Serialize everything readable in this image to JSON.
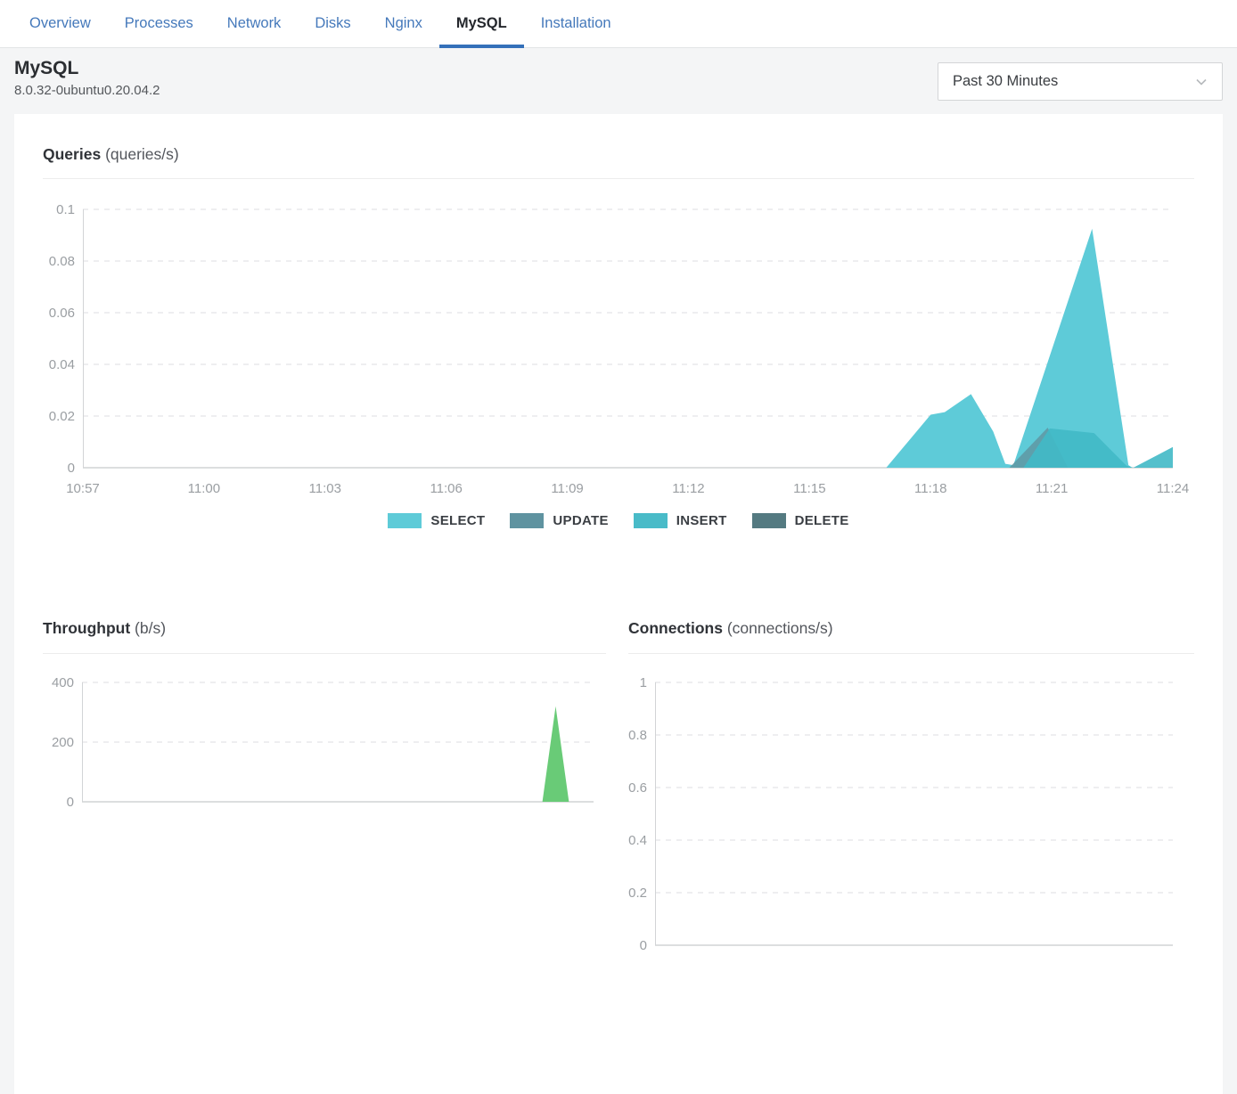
{
  "tabs": {
    "items": [
      {
        "label": "Overview",
        "active": false
      },
      {
        "label": "Processes",
        "active": false
      },
      {
        "label": "Network",
        "active": false
      },
      {
        "label": "Disks",
        "active": false
      },
      {
        "label": "Nginx",
        "active": false
      },
      {
        "label": "MySQL",
        "active": true
      },
      {
        "label": "Installation",
        "active": false
      }
    ]
  },
  "header": {
    "title": "MySQL",
    "version": "8.0.32-0ubuntu0.20.04.2",
    "time_range_value": "Past 30 Minutes"
  },
  "colors": {
    "tab_blue": "#4579bb",
    "active_tab_underline": "#3470b9",
    "select": "#5ecbd8",
    "update": "#5f93a0",
    "insert": "#49bbc8",
    "delete": "#547a81",
    "throughput_green": "#69cb77",
    "page_background": "#f4f5f6",
    "card_background": "#ffffff"
  },
  "chart_data": [
    {
      "id": "queries",
      "type": "area",
      "title": "Queries",
      "unit": "(queries/s)",
      "ylim": [
        0,
        0.1
      ],
      "yticks": [
        0,
        0.02,
        0.04,
        0.06,
        0.08,
        0.1
      ],
      "ytick_labels": [
        "0",
        "0.02",
        "0.04",
        "0.06",
        "0.08",
        "0.1"
      ],
      "x_range_minutes": [
        0,
        27
      ],
      "x_tick_labels": [
        "10:57",
        "11:00",
        "11:03",
        "11:06",
        "11:09",
        "11:12",
        "11:15",
        "11:18",
        "11:21",
        "11:24"
      ],
      "x_tick_pos": [
        0,
        3,
        6,
        9,
        12,
        15,
        18,
        21,
        24,
        27
      ],
      "grid": "dashed",
      "legend_position": "bottom-center",
      "legend": [
        {
          "label": "SELECT",
          "color": "#5ecbd8"
        },
        {
          "label": "UPDATE",
          "color": "#5f93a0"
        },
        {
          "label": "INSERT",
          "color": "#49bbc8"
        },
        {
          "label": "DELETE",
          "color": "#547a81"
        }
      ],
      "series": [
        {
          "name": "SELECT",
          "color": "#5ecbd8",
          "opacity": 1,
          "points": [
            [
              0,
              0
            ],
            [
              19.9,
              0
            ],
            [
              21,
              0.0205
            ],
            [
              21.35,
              0.0215
            ],
            [
              22,
              0.0285
            ],
            [
              22.55,
              0.014
            ],
            [
              22.85,
              0.0015
            ],
            [
              23.05,
              0.001
            ],
            [
              25,
              0.0925
            ],
            [
              25.9,
              0.001
            ],
            [
              26,
              0
            ],
            [
              27,
              0
            ]
          ]
        },
        {
          "name": "UPDATE",
          "color": "#5f93a0",
          "opacity": 0.8,
          "points": [
            [
              0,
              0
            ],
            [
              22.95,
              0
            ],
            [
              23.9,
              0.0155
            ],
            [
              24.4,
              0
            ],
            [
              27,
              0
            ]
          ]
        },
        {
          "name": "INSERT",
          "color": "#41b9c7",
          "opacity": 0.9,
          "points": [
            [
              0,
              0
            ],
            [
              23.3,
              0
            ],
            [
              23.95,
              0.0152
            ],
            [
              25.05,
              0.0134
            ],
            [
              25.85,
              0.0008
            ],
            [
              26.02,
              0
            ],
            [
              27,
              0.008
            ]
          ]
        },
        {
          "name": "DELETE",
          "color": "#547a81",
          "opacity": 0.9,
          "points": [
            [
              0,
              0
            ],
            [
              27,
              0
            ]
          ]
        }
      ]
    },
    {
      "id": "throughput",
      "type": "area",
      "title": "Throughput",
      "unit": "(b/s)",
      "ylim": [
        0,
        400
      ],
      "yticks": [
        0,
        200,
        400
      ],
      "ytick_labels": [
        "0",
        "200",
        "400"
      ],
      "x_range_minutes": [
        0,
        27
      ],
      "grid": "dashed",
      "series": [
        {
          "name": "throughput",
          "color": "#69cb77",
          "opacity": 1,
          "points": [
            [
              0,
              0
            ],
            [
              24.3,
              0
            ],
            [
              25,
              320
            ],
            [
              25.7,
              0
            ],
            [
              27,
              0
            ]
          ]
        }
      ]
    },
    {
      "id": "connections",
      "type": "area",
      "title": "Connections",
      "unit": "(connections/s)",
      "ylim": [
        0,
        1
      ],
      "yticks": [
        0,
        0.2,
        0.4,
        0.6,
        0.8,
        1
      ],
      "ytick_labels": [
        "0",
        "0.2",
        "0.4",
        "0.6",
        "0.8",
        "1"
      ],
      "x_range_minutes": [
        0,
        27
      ],
      "grid": "dashed",
      "series": [
        {
          "name": "connections",
          "color": "#69cb77",
          "opacity": 1,
          "points": [
            [
              0,
              0
            ],
            [
              27,
              0
            ]
          ]
        }
      ]
    }
  ]
}
